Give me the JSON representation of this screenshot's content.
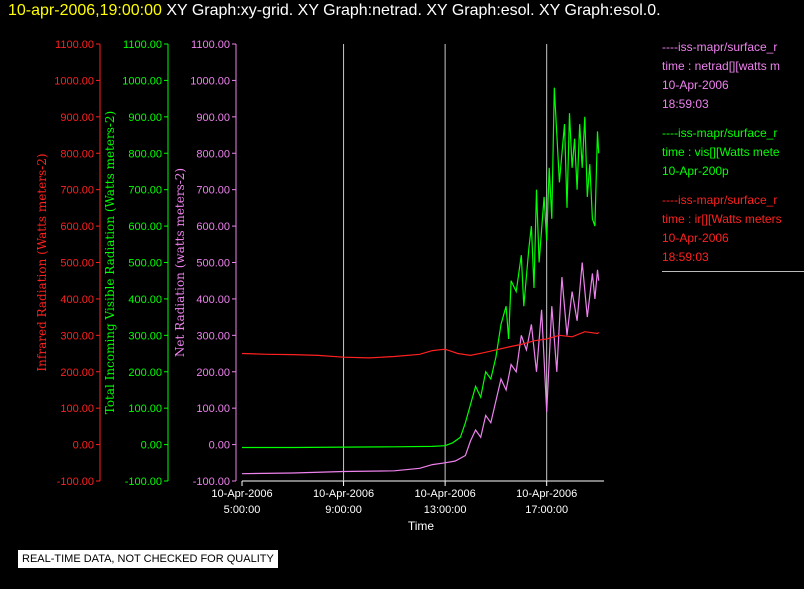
{
  "header": {
    "timestamp": "10-apr-2006,19:00:00",
    "graphs": "XY Graph:xy-grid.  XY Graph:netrad.  XY Graph:esol.  XY Graph:esol.0."
  },
  "footer": {
    "quality_note": "REAL-TIME DATA, NOT CHECKED FOR QUALITY"
  },
  "colors": {
    "background": "#000000",
    "ir": "#ff2020",
    "vis": "#00ff00",
    "net": "#ee82ee",
    "axis": "#ffffff",
    "timestamp": "#ffff00"
  },
  "legend": [
    {
      "source": "----iss-mapr/surface_r",
      "field": "time : netrad[][watts m",
      "date": "10-Apr-2006",
      "time": "18:59:03",
      "color": "#ee82ee"
    },
    {
      "source": "----iss-mapr/surface_r",
      "field": "time : vis[][Watts mete",
      "date": "10-Apr-200p",
      "time": "",
      "color": "#00ff00"
    },
    {
      "source": "----iss-mapr/surface_r",
      "field": "time : ir[][Watts meters",
      "date": "10-Apr-2006",
      "time": "18:59:03",
      "color": "#ff2020"
    }
  ],
  "chart_data": {
    "type": "line",
    "xlabel": "Time",
    "x_ticks": [
      {
        "hour": 5,
        "date": "10-Apr-2006",
        "time": "5:00:00"
      },
      {
        "hour": 9,
        "date": "10-Apr-2006",
        "time": "9:00:00"
      },
      {
        "hour": 13,
        "date": "10-Apr-2006",
        "time": "13:00:00"
      },
      {
        "hour": 17,
        "date": "10-Apr-2006",
        "time": "17:00:00"
      }
    ],
    "xlim": [
      5,
      19.1
    ],
    "ylim": [
      -100,
      1100
    ],
    "y_ticks": [
      -100,
      0,
      100,
      200,
      300,
      400,
      500,
      600,
      700,
      800,
      900,
      1000,
      1100
    ],
    "y_tick_labels": [
      "-100.00",
      "0.00",
      "100.00",
      "200.00",
      "300.00",
      "400.00",
      "500.00",
      "600.00",
      "700.00",
      "800.00",
      "900.00",
      "1000.00",
      "1100.00"
    ],
    "axes": [
      {
        "id": "ir",
        "label": "Infrared Radiation (Watts meters-2)",
        "color": "#ff2020"
      },
      {
        "id": "vis",
        "label": "Total Incoming Visible Radiation (Watts meters-2)",
        "color": "#00ff00"
      },
      {
        "id": "net",
        "label": "Net Radiation (watts meters-2)",
        "color": "#ee82ee"
      }
    ],
    "grid_x": true,
    "series": [
      {
        "id": "vis",
        "color": "#00ff00",
        "x": [
          5.0,
          7.0,
          9.0,
          11.0,
          12.5,
          13.0,
          13.3,
          13.6,
          13.8,
          14.0,
          14.2,
          14.4,
          14.6,
          14.8,
          15.0,
          15.2,
          15.4,
          15.5,
          15.6,
          15.8,
          16.0,
          16.1,
          16.3,
          16.4,
          16.5,
          16.6,
          16.7,
          16.9,
          17.0,
          17.1,
          17.2,
          17.3,
          17.5,
          17.7,
          17.8,
          17.9,
          18.0,
          18.1,
          18.2,
          18.3,
          18.4,
          18.5,
          18.6,
          18.7,
          18.8,
          18.9,
          19.0,
          19.05
        ],
        "y": [
          -8,
          -8,
          -7,
          -6,
          -5,
          -3,
          5,
          20,
          60,
          110,
          160,
          130,
          200,
          180,
          240,
          330,
          380,
          290,
          450,
          420,
          520,
          380,
          540,
          600,
          430,
          700,
          500,
          680,
          560,
          760,
          620,
          980,
          720,
          880,
          650,
          910,
          760,
          840,
          700,
          880,
          760,
          900,
          680,
          770,
          620,
          600,
          860,
          800
        ]
      },
      {
        "id": "net",
        "color": "#ee82ee",
        "x": [
          5.0,
          7.0,
          9.0,
          11.0,
          12.0,
          12.5,
          13.0,
          13.4,
          13.8,
          14.0,
          14.2,
          14.4,
          14.6,
          14.8,
          15.0,
          15.2,
          15.4,
          15.6,
          15.8,
          16.0,
          16.2,
          16.4,
          16.6,
          16.8,
          17.0,
          17.2,
          17.4,
          17.6,
          17.8,
          18.0,
          18.2,
          18.4,
          18.6,
          18.8,
          18.9,
          19.0,
          19.05
        ],
        "y": [
          -80,
          -78,
          -74,
          -72,
          -65,
          -55,
          -50,
          -45,
          -30,
          10,
          40,
          20,
          80,
          60,
          120,
          180,
          150,
          220,
          200,
          300,
          260,
          330,
          200,
          370,
          90,
          380,
          200,
          460,
          300,
          420,
          340,
          500,
          350,
          470,
          400,
          480,
          450
        ]
      },
      {
        "id": "ir",
        "color": "#ff2020",
        "x": [
          5.0,
          6.0,
          7.0,
          8.0,
          9.0,
          10.0,
          11.0,
          12.0,
          12.5,
          13.0,
          13.5,
          14.0,
          14.5,
          15.0,
          15.5,
          16.0,
          16.5,
          17.0,
          17.5,
          18.0,
          18.5,
          19.0,
          19.05
        ],
        "y": [
          250,
          248,
          247,
          245,
          240,
          238,
          242,
          248,
          258,
          262,
          250,
          245,
          252,
          260,
          268,
          275,
          285,
          290,
          300,
          296,
          310,
          305,
          308
        ]
      }
    ]
  }
}
